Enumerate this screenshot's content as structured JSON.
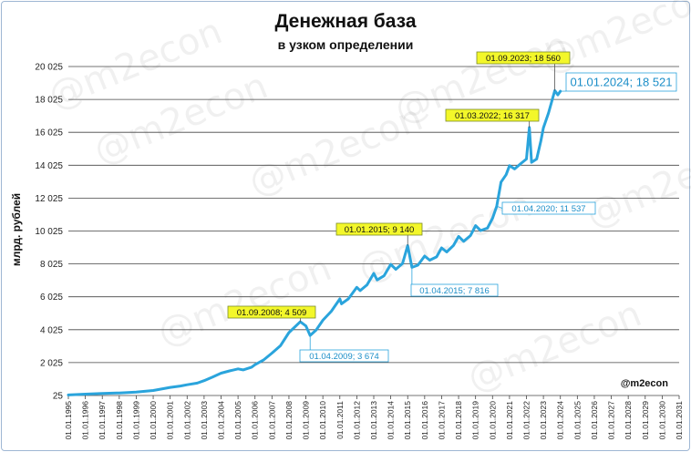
{
  "chart_data": {
    "type": "line",
    "title": "Денежная база",
    "subtitle": "в узком определении",
    "ylabel": "млрд. рублей",
    "xlabel": "",
    "ylim": [
      25,
      20025
    ],
    "yticks": [
      "20 025",
      "18 025",
      "16 025",
      "14 025",
      "12 025",
      "10 025",
      "8 025",
      "6 025",
      "4 025",
      "2 025",
      "25"
    ],
    "xlim": [
      1995,
      2031
    ],
    "xticks": [
      "01.01.1995",
      "01.01.1996",
      "01.01.1997",
      "01.01.1998",
      "01.01.1999",
      "01.01.2000",
      "01.01.2001",
      "01.01.2002",
      "01.01.2003",
      "01.01.2004",
      "01.01.2005",
      "01.01.2006",
      "01.01.2007",
      "01.01.2008",
      "01.01.2009",
      "01.01.2010",
      "01.01.2011",
      "01.01.2012",
      "01.01.2013",
      "01.01.2014",
      "01.01.2015",
      "01.01.2016",
      "01.01.2017",
      "01.01.2018",
      "01.01.2019",
      "01.01.2020",
      "01.01.2021",
      "01.01.2022",
      "01.01.2023",
      "01.01.2024",
      "01.01.2025",
      "01.01.2026",
      "01.01.2027",
      "01.01.2028",
      "01.01.2029",
      "01.01.2030",
      "01.01.2031"
    ],
    "grid": true,
    "legend": "none",
    "series": [
      {
        "color": "#2aa4dc",
        "points": [
          [
            1995.0,
            60
          ],
          [
            1996.0,
            110
          ],
          [
            1997.0,
            150
          ],
          [
            1998.0,
            180
          ],
          [
            1999.0,
            230
          ],
          [
            2000.0,
            330
          ],
          [
            2001.0,
            520
          ],
          [
            2001.6,
            600
          ],
          [
            2002.0,
            680
          ],
          [
            2002.6,
            780
          ],
          [
            2003.0,
            930
          ],
          [
            2003.5,
            1150
          ],
          [
            2004.0,
            1380
          ],
          [
            2004.5,
            1520
          ],
          [
            2005.0,
            1640
          ],
          [
            2005.3,
            1580
          ],
          [
            2005.8,
            1750
          ],
          [
            2006.0,
            1900
          ],
          [
            2006.5,
            2180
          ],
          [
            2007.0,
            2600
          ],
          [
            2007.5,
            3050
          ],
          [
            2008.0,
            3850
          ],
          [
            2008.67,
            4509
          ],
          [
            2009.0,
            4250
          ],
          [
            2009.25,
            3674
          ],
          [
            2009.6,
            4000
          ],
          [
            2010.0,
            4600
          ],
          [
            2010.5,
            5150
          ],
          [
            2011.0,
            5900
          ],
          [
            2011.1,
            5600
          ],
          [
            2011.5,
            5900
          ],
          [
            2012.0,
            6600
          ],
          [
            2012.2,
            6400
          ],
          [
            2012.6,
            6750
          ],
          [
            2013.0,
            7450
          ],
          [
            2013.2,
            7050
          ],
          [
            2013.6,
            7300
          ],
          [
            2014.0,
            8000
          ],
          [
            2014.3,
            7700
          ],
          [
            2014.7,
            8050
          ],
          [
            2015.0,
            9140
          ],
          [
            2015.25,
            7816
          ],
          [
            2015.6,
            7950
          ],
          [
            2016.0,
            8500
          ],
          [
            2016.3,
            8250
          ],
          [
            2016.7,
            8450
          ],
          [
            2017.0,
            9000
          ],
          [
            2017.3,
            8750
          ],
          [
            2017.7,
            9150
          ],
          [
            2018.0,
            9700
          ],
          [
            2018.3,
            9400
          ],
          [
            2018.7,
            9750
          ],
          [
            2019.0,
            10350
          ],
          [
            2019.3,
            10050
          ],
          [
            2019.7,
            10200
          ],
          [
            2020.0,
            10800
          ],
          [
            2020.25,
            11537
          ],
          [
            2020.5,
            13000
          ],
          [
            2020.8,
            13450
          ],
          [
            2021.0,
            14000
          ],
          [
            2021.3,
            13800
          ],
          [
            2021.7,
            14150
          ],
          [
            2022.0,
            14400
          ],
          [
            2022.17,
            16317
          ],
          [
            2022.3,
            14200
          ],
          [
            2022.6,
            14400
          ],
          [
            2022.85,
            15500
          ],
          [
            2023.0,
            16300
          ],
          [
            2023.3,
            17200
          ],
          [
            2023.67,
            18560
          ],
          [
            2023.85,
            18300
          ],
          [
            2024.0,
            18521
          ]
        ]
      }
    ],
    "annotations": [
      {
        "x": 2008.67,
        "y": 4509,
        "text": "01.09.2008; 4 509",
        "style": "highlight"
      },
      {
        "x": 2009.25,
        "y": 3674,
        "text": "01.04.2009; 3 674",
        "style": "outline"
      },
      {
        "x": 2015.0,
        "y": 9140,
        "text": "01.01.2015; 9 140",
        "style": "highlight"
      },
      {
        "x": 2015.25,
        "y": 7816,
        "text": "01.04.2015; 7 816",
        "style": "outline"
      },
      {
        "x": 2020.25,
        "y": 11537,
        "text": "01.04.2020; 11 537",
        "style": "outline"
      },
      {
        "x": 2022.17,
        "y": 16317,
        "text": "01.03.2022; 16 317",
        "style": "highlight"
      },
      {
        "x": 2023.67,
        "y": 18560,
        "text": "01.09.2023; 18 560",
        "style": "highlight"
      },
      {
        "x": 2024.0,
        "y": 18521,
        "text": "01.01.2024; 18 521",
        "style": "outline-large"
      }
    ],
    "brand": "@m2econ",
    "watermark": "@m2econ",
    "colors": {
      "line": "#2aa4dc",
      "highlight_fill": "#f3f72a",
      "highlight_border": "#7a8a2a",
      "outline_border": "#2aa4dc",
      "outline_text": "#1b8ec8",
      "grid": "#444444"
    }
  }
}
